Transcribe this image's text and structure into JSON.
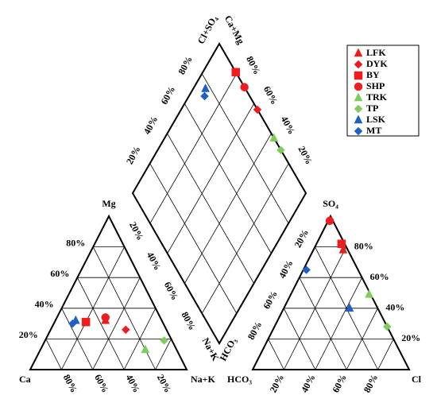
{
  "chart_data": {
    "type": "piper",
    "ticks": [
      {
        "value": 20,
        "label": "20%"
      },
      {
        "value": 40,
        "label": "40%"
      },
      {
        "value": 60,
        "label": "60%"
      },
      {
        "value": 80,
        "label": "80%"
      }
    ],
    "axis_labels": {
      "ca": "Ca",
      "mg": "Mg",
      "nak": "Na+K",
      "hco3": "HCO₃",
      "so4": "SO₄",
      "cl": "Cl",
      "diamond_top_left": "Cl+SO₄",
      "diamond_top_right": "Ca+Mg",
      "diamond_bottom_left": "Na+K",
      "diamond_bottom_right": "HCO₃"
    },
    "legend": "upper right",
    "series": [
      {
        "name": "LFK",
        "color": "#ee1c1c",
        "marker": "triangle",
        "cation": [
          32,
          32
        ],
        "anion": [
          78,
          19
        ],
        "diamond": null
      },
      {
        "name": "DYK",
        "color": "#ee1c1c",
        "marker": "diamond",
        "cation": [
          26,
          48
        ],
        "anion": null,
        "diamond": [
          56,
          100
        ]
      },
      {
        "name": "BY",
        "color": "#ee1c1c",
        "marker": "square",
        "cation": [
          31,
          20
        ],
        "anion": [
          82,
          16
        ],
        "diamond": [
          81,
          100
        ]
      },
      {
        "name": "SHP",
        "color": "#ee1c1c",
        "marker": "circle",
        "cation": [
          34,
          31
        ],
        "anion": [
          97,
          1
        ],
        "diamond": [
          71,
          100
        ]
      },
      {
        "name": "TRK",
        "color": "#7ccd5a",
        "marker": "triangle",
        "cation": [
          13,
          67
        ],
        "anion": [
          49,
          50
        ],
        "diamond": [
          37,
          100
        ]
      },
      {
        "name": "TP",
        "color": "#7ccd5a",
        "marker": "diamond",
        "cation": [
          19,
          76
        ],
        "anion": [
          28,
          72
        ],
        "diamond": [
          29,
          100
        ]
      },
      {
        "name": "LSK",
        "color": "#1f5fc8",
        "marker": "triangle",
        "cation": [
          32,
          13
        ],
        "anion": [
          40,
          42
        ],
        "diamond": [
          93,
          77
        ]
      },
      {
        "name": "MT",
        "color": "#1f5fc8",
        "marker": "diamond",
        "cation": [
          30,
          12
        ],
        "anion": [
          65,
          2
        ],
        "diamond": [
          91,
          74
        ]
      }
    ]
  }
}
